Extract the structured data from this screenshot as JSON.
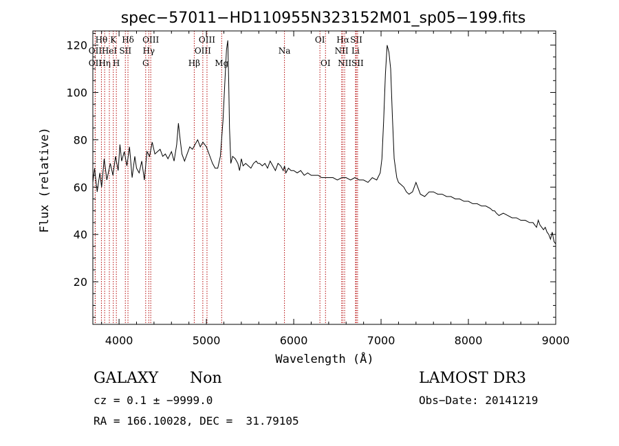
{
  "chart_data": {
    "type": "line",
    "title": "spec−57011−HD110955N323152M01_sp05−199.fits",
    "xlabel": "Wavelength (Å)",
    "ylabel": "Flux (relative)",
    "xlim": [
      3700,
      9000
    ],
    "ylim": [
      2,
      126
    ],
    "xticks": [
      4000,
      5000,
      6000,
      7000,
      8000,
      9000
    ],
    "yticks": [
      20,
      40,
      60,
      80,
      100,
      120
    ],
    "grid": false,
    "line_color": "#000000",
    "marker_color": "#b30000",
    "series": [
      {
        "x": [
          3700,
          3720,
          3750,
          3780,
          3800,
          3830,
          3860,
          3900,
          3930,
          3960,
          3990,
          4010,
          4030,
          4060,
          4090,
          4120,
          4150,
          4180,
          4200,
          4230,
          4260,
          4290,
          4320,
          4350,
          4380,
          4410,
          4440,
          4470,
          4500,
          4530,
          4560,
          4600,
          4630,
          4660,
          4680,
          4700,
          4720,
          4750,
          4780,
          4810,
          4840,
          4870,
          4900,
          4930,
          4960,
          5000,
          5040,
          5070,
          5100,
          5130,
          5160,
          5190,
          5210,
          5230,
          5245,
          5255,
          5265,
          5280,
          5300,
          5330,
          5360,
          5380,
          5400,
          5420,
          5450,
          5480,
          5510,
          5540,
          5570,
          5590,
          5610,
          5640,
          5670,
          5700,
          5730,
          5760,
          5790,
          5820,
          5850,
          5880,
          5895,
          5910,
          5940,
          5970,
          6000,
          6040,
          6080,
          6120,
          6160,
          6200,
          6240,
          6280,
          6320,
          6360,
          6400,
          6450,
          6500,
          6550,
          6600,
          6650,
          6700,
          6750,
          6800,
          6850,
          6900,
          6950,
          6990,
          7010,
          7030,
          7050,
          7070,
          7090,
          7110,
          7130,
          7150,
          7180,
          7200,
          7230,
          7260,
          7290,
          7320,
          7360,
          7400,
          7450,
          7500,
          7550,
          7600,
          7650,
          7700,
          7750,
          7800,
          7850,
          7900,
          7950,
          8000,
          8050,
          8100,
          8150,
          8200,
          8250,
          8280,
          8300,
          8320,
          8350,
          8400,
          8450,
          8500,
          8550,
          8600,
          8650,
          8700,
          8740,
          8760,
          8780,
          8800,
          8820,
          8840,
          8860,
          8880,
          8900,
          8920,
          8940,
          8960,
          8980,
          9000
        ],
        "y": [
          62,
          68,
          58,
          66,
          60,
          72,
          63,
          70,
          65,
          73,
          67,
          78,
          71,
          75,
          69,
          77,
          64,
          73,
          68,
          66,
          71,
          63,
          75,
          73,
          79,
          74,
          75,
          76,
          73,
          74,
          72,
          75,
          71,
          78,
          87,
          80,
          74,
          71,
          74,
          77,
          76,
          78,
          80,
          77,
          79,
          77,
          73,
          70,
          68,
          68,
          73,
          88,
          103,
          118,
          122,
          105,
          85,
          70,
          73,
          72,
          70,
          67,
          72,
          69,
          70,
          69,
          68,
          70,
          71,
          70,
          70,
          69,
          70,
          68,
          71,
          69,
          67,
          70,
          69,
          67,
          69,
          66,
          68,
          67,
          67,
          66,
          67,
          65,
          66,
          65,
          65,
          65,
          64,
          64,
          64,
          64,
          63,
          64,
          64,
          63,
          64,
          63,
          63,
          62,
          64,
          63,
          66,
          72,
          88,
          108,
          120,
          117,
          110,
          90,
          72,
          64,
          62,
          61,
          60,
          58,
          57,
          58,
          62,
          57,
          56,
          58,
          58,
          57,
          57,
          56,
          56,
          55,
          55,
          54,
          54,
          53,
          53,
          52,
          52,
          51,
          50,
          50,
          49,
          48,
          49,
          48,
          47,
          47,
          46,
          46,
          45,
          45,
          44,
          43,
          46,
          44,
          43,
          42,
          43,
          41,
          40,
          38,
          41,
          37,
          36
        ]
      }
    ],
    "line_markers": [
      {
        "label": "OII",
        "x": 3727,
        "row": 2
      },
      {
        "label": "Hθ",
        "x": 3798,
        "row": 1
      },
      {
        "label": "OII",
        "x": 3727,
        "row": 3
      },
      {
        "label": "Hη",
        "x": 3835,
        "row": 3
      },
      {
        "label": "HeI",
        "x": 3889,
        "row": 2
      },
      {
        "label": "K",
        "x": 3934,
        "row": 1
      },
      {
        "label": "H",
        "x": 3969,
        "row": 3
      },
      {
        "label": "Hδ",
        "x": 4102,
        "row": 1
      },
      {
        "label": "SII",
        "x": 4072,
        "row": 2
      },
      {
        "label": "Hγ",
        "x": 4340,
        "row": 2
      },
      {
        "label": "G",
        "x": 4305,
        "row": 3
      },
      {
        "label": "OIII",
        "x": 4363,
        "row": 1
      },
      {
        "label": "Hβ",
        "x": 4861,
        "row": 3
      },
      {
        "label": "OIII",
        "x": 4959,
        "row": 2
      },
      {
        "label": "OIII",
        "x": 5007,
        "row": 1
      },
      {
        "label": "Mg",
        "x": 5175,
        "row": 3
      },
      {
        "label": "Na",
        "x": 5894,
        "row": 2
      },
      {
        "label": "OI",
        "x": 6300,
        "row": 1
      },
      {
        "label": "OI",
        "x": 6364,
        "row": 3
      },
      {
        "label": "Hα",
        "x": 6563,
        "row": 1
      },
      {
        "label": "NII",
        "x": 6548,
        "row": 2
      },
      {
        "label": "NII",
        "x": 6583,
        "row": 3
      },
      {
        "label": "SII",
        "x": 6716,
        "row": 1
      },
      {
        "label": "Li",
        "x": 6708,
        "row": 2
      },
      {
        "label": "SII",
        "x": 6731,
        "row": 3
      }
    ]
  },
  "info": {
    "class_label": "GALAXY",
    "subclass_label": "Non",
    "survey": "LAMOST DR3",
    "cz_line": "cz = 0.1 ± −9999.0",
    "obs_date": "Obs−Date: 20141219",
    "coords": "RA = 166.10028, DEC =  31.79105"
  }
}
